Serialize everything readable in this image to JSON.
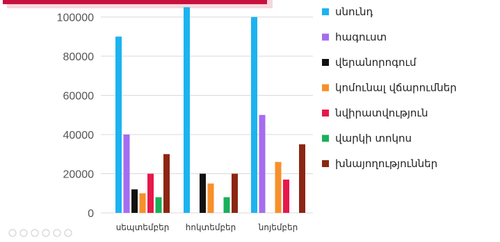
{
  "chart_data": {
    "type": "bar",
    "categories": [
      "սեպտեմբեր",
      "հոկտեմբեր",
      "նոյեմբեր"
    ],
    "series": [
      {
        "name": "սնունդ",
        "color": "#1cb3f0",
        "values": [
          90000,
          105000,
          100000
        ]
      },
      {
        "name": "հագուստ",
        "color": "#a66cf0",
        "values": [
          40000,
          0,
          50000
        ]
      },
      {
        "name": "վերանորոգում",
        "color": "#111111",
        "values": [
          12000,
          20000,
          0
        ]
      },
      {
        "name": "կոմունալ վճարումներ",
        "color": "#f7902b",
        "values": [
          10000,
          15000,
          26000
        ]
      },
      {
        "name": "նվիրատվություն",
        "color": "#e8174a",
        "values": [
          20000,
          0,
          17000
        ]
      },
      {
        "name": "վարկի տոկոս",
        "color": "#19b05a",
        "values": [
          8000,
          8000,
          0
        ]
      },
      {
        "name": "խնայողություններ",
        "color": "#8c2613",
        "values": [
          30000,
          20000,
          35000
        ]
      }
    ],
    "yticks": [
      0,
      20000,
      40000,
      60000,
      80000,
      100000
    ],
    "ylim": [
      0,
      110000
    ],
    "title": "",
    "xlabel": "",
    "ylabel": "",
    "legend_position": "right",
    "grid": true
  }
}
